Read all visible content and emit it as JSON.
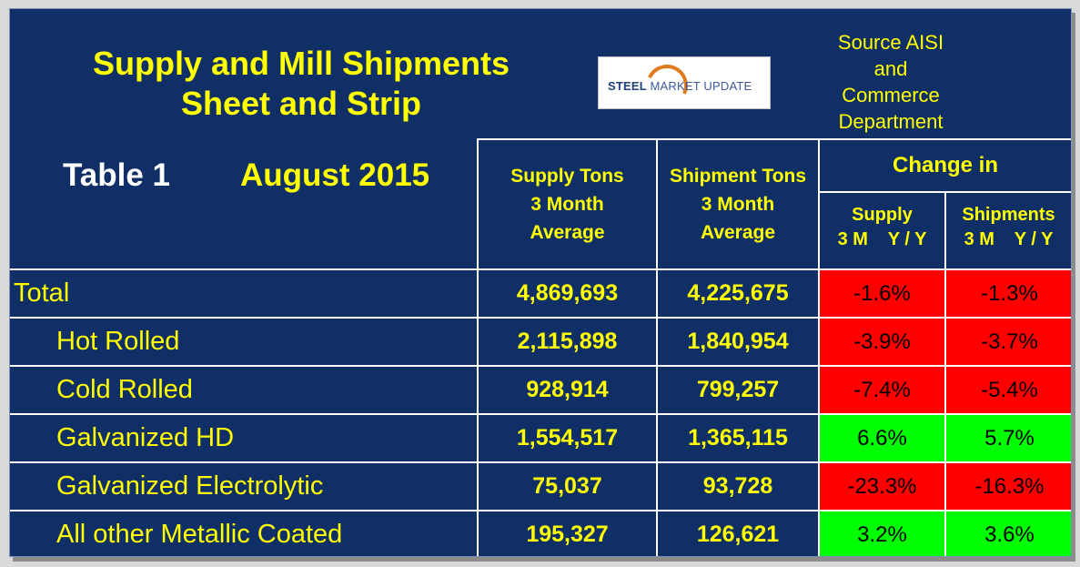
{
  "header": {
    "title_line1": "Supply and Mill Shipments",
    "title_line2": "Sheet and Strip",
    "logo_text_bold": "STEEL",
    "logo_text_rest": "MARKET UPDATE",
    "source_lines": [
      "Source AISI",
      "and",
      "Commerce",
      "Department"
    ],
    "table_label": "Table 1",
    "table_date": "August 2015"
  },
  "columns": {
    "supply_tons": [
      "Supply Tons",
      "3 Month",
      "Average"
    ],
    "shipment_tons": [
      "Shipment Tons",
      "3 Month",
      "Average"
    ],
    "change_in": "Change in",
    "supply_change": [
      "Supply",
      "3 M    Y / Y"
    ],
    "shipments_change": [
      "Shipments",
      "3 M    Y / Y"
    ]
  },
  "rows": [
    {
      "label": "Total",
      "supply": "4,869,693",
      "shipments": "4,225,675",
      "supply_change": "-1.6%",
      "shipments_change": "-1.3%",
      "supply_color": "#ff0000",
      "shipments_color": "#ff0000"
    },
    {
      "label": "Hot Rolled",
      "supply": "2,115,898",
      "shipments": "1,840,954",
      "supply_change": "-3.9%",
      "shipments_change": "-3.7%",
      "supply_color": "#ff0000",
      "shipments_color": "#ff0000"
    },
    {
      "label": "Cold Rolled",
      "supply": "928,914",
      "shipments": "799,257",
      "supply_change": "-7.4%",
      "shipments_change": "-5.4%",
      "supply_color": "#ff0000",
      "shipments_color": "#ff0000"
    },
    {
      "label": "Galvanized HD",
      "supply": "1,554,517",
      "shipments": "1,365,115",
      "supply_change": "6.6%",
      "shipments_change": "5.7%",
      "supply_color": "#00ff00",
      "shipments_color": "#00ff00"
    },
    {
      "label": "Galvanized Electrolytic",
      "supply": "75,037",
      "shipments": "93,728",
      "supply_change": "-23.3%",
      "shipments_change": "-16.3%",
      "supply_color": "#ff0000",
      "shipments_color": "#ff0000"
    },
    {
      "label": "All other Metallic Coated",
      "supply": "195,327",
      "shipments": "126,621",
      "supply_change": "3.2%",
      "shipments_change": "3.6%",
      "supply_color": "#00ff00",
      "shipments_color": "#00ff00"
    }
  ],
  "colors": {
    "background": "#0f2f66",
    "text_yellow": "#ffff00",
    "negative": "#ff0000",
    "positive": "#00ff00"
  }
}
